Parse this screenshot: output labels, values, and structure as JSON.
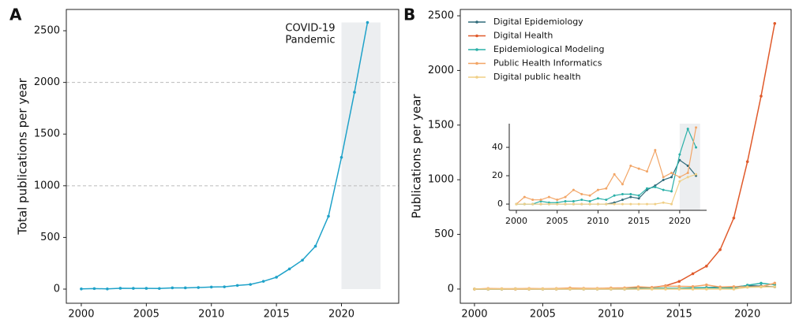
{
  "chart_data": [
    {
      "type": "line",
      "panel": "A",
      "ylabel": "Total publications per year",
      "x": [
        2000,
        2001,
        2002,
        2003,
        2004,
        2005,
        2006,
        2007,
        2008,
        2009,
        2010,
        2011,
        2012,
        2013,
        2014,
        2015,
        2016,
        2017,
        2018,
        2019,
        2020,
        2021,
        2022
      ],
      "values": [
        2,
        5,
        2,
        8,
        7,
        7,
        6,
        12,
        12,
        15,
        20,
        22,
        35,
        45,
        75,
        115,
        195,
        280,
        415,
        705,
        1275,
        1905,
        2580
      ],
      "color": "#1fa2c9",
      "xlim": [
        1998.85,
        2024.4
      ],
      "xticks": [
        2000,
        2005,
        2010,
        2015,
        2020
      ],
      "ylim": [
        -137,
        2706
      ],
      "yticks": [
        0,
        500,
        1000,
        1500,
        2000,
        2500
      ],
      "grid_lines": [
        1000,
        2000
      ],
      "highlight": {
        "x": [
          2020,
          2023
        ],
        "y": [
          0,
          2580
        ]
      },
      "annotation": [
        "COVID-19",
        "Pandemic"
      ]
    },
    {
      "type": "line",
      "panel": "B",
      "ylabel": "Publications per year",
      "x": [
        2000,
        2001,
        2002,
        2003,
        2004,
        2005,
        2006,
        2007,
        2008,
        2009,
        2010,
        2011,
        2012,
        2013,
        2014,
        2015,
        2016,
        2017,
        2018,
        2019,
        2020,
        2021,
        2022
      ],
      "series": [
        {
          "name": "Digital Epidemiology",
          "color": "#2f6b7a",
          "values": [
            0,
            0,
            0,
            0,
            0,
            0,
            0,
            0,
            0,
            0,
            0,
            0,
            1,
            3,
            5,
            4,
            10,
            13,
            17,
            19,
            31,
            27,
            20
          ]
        },
        {
          "name": "Digital Health",
          "color": "#e05a2b",
          "values": [
            0,
            0,
            0,
            0,
            0,
            1,
            1,
            2,
            2,
            3,
            5,
            6,
            10,
            15,
            30,
            70,
            140,
            210,
            360,
            650,
            1165,
            1765,
            2430
          ]
        },
        {
          "name": "Epidemiological Modeling",
          "color": "#2ab0a8",
          "values": [
            0,
            0,
            0,
            2,
            1,
            1,
            2,
            2,
            3,
            2,
            4,
            3,
            6,
            7,
            7,
            6,
            11,
            12,
            10,
            9,
            35,
            53,
            40
          ]
        },
        {
          "name": "Public Health Informatics",
          "color": "#f2a566",
          "values": [
            0,
            5,
            3,
            3,
            5,
            3,
            5,
            10,
            7,
            6,
            10,
            11,
            21,
            14,
            27,
            25,
            23,
            38,
            19,
            22,
            19,
            22,
            54
          ]
        },
        {
          "name": "Digital public health",
          "color": "#f0cf86",
          "values": [
            0,
            0,
            0,
            0,
            0,
            0,
            0,
            0,
            0,
            0,
            0,
            0,
            0,
            0,
            0,
            0,
            0,
            0,
            1,
            0,
            16,
            19,
            21
          ]
        }
      ],
      "xlim": [
        1998.96,
        2023.2
      ],
      "xticks": [
        2000,
        2005,
        2010,
        2015,
        2020
      ],
      "ylim": [
        -130,
        2558
      ],
      "yticks": [
        0,
        500,
        1000,
        1500,
        2000,
        2500
      ],
      "legend": "upper left"
    },
    {
      "type": "line",
      "x": [
        2000,
        2001,
        2002,
        2003,
        2004,
        2005,
        2006,
        2007,
        2008,
        2009,
        2010,
        2011,
        2012,
        2013,
        2014,
        2015,
        2016,
        2017,
        2018,
        2019,
        2020,
        2021,
        2022
      ],
      "series": [
        {
          "color": "#2f6b7a",
          "values": [
            0,
            0,
            0,
            0,
            0,
            0,
            0,
            0,
            0,
            0,
            0,
            0,
            1,
            3,
            5,
            4,
            10,
            13,
            17,
            19,
            31,
            27,
            20
          ]
        },
        {
          "color": "#2ab0a8",
          "values": [
            0,
            0,
            0,
            2,
            1,
            1,
            2,
            2,
            3,
            2,
            4,
            3,
            6,
            7,
            7,
            6,
            11,
            12,
            10,
            9,
            35,
            53,
            40
          ]
        },
        {
          "color": "#f2a566",
          "values": [
            0,
            5,
            3,
            3,
            5,
            3,
            5,
            10,
            7,
            6,
            10,
            11,
            21,
            14,
            27,
            25,
            23,
            38,
            19,
            22,
            19,
            22,
            54
          ]
        },
        {
          "color": "#f0cf86",
          "values": [
            0,
            0,
            0,
            0,
            0,
            0,
            0,
            0,
            0,
            0,
            0,
            0,
            0,
            0,
            0,
            0,
            0,
            0,
            1,
            0,
            16,
            19,
            21
          ]
        }
      ],
      "xlim": [
        1999.13,
        2023.3
      ],
      "xticks": [
        2000,
        2005,
        2010,
        2015,
        2020
      ],
      "ylim": [
        -4.4,
        56.7
      ],
      "yticks": [
        0,
        20,
        40
      ],
      "highlight": {
        "x": [
          2020,
          2022.5
        ],
        "y": [
          -4.4,
          56.7
        ]
      }
    }
  ]
}
